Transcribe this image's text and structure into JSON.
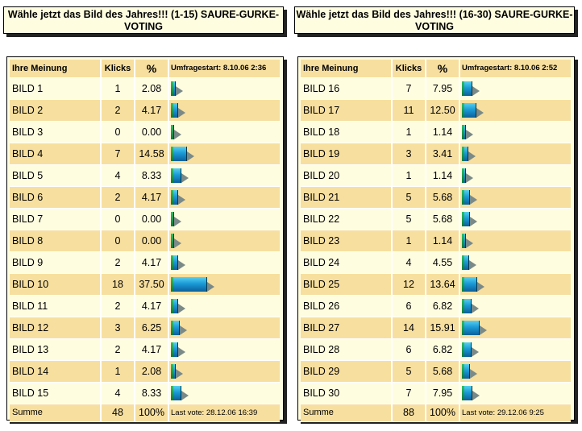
{
  "left": {
    "title": "Wähle jetzt das Bild des Jahres!!! (1-15) SAURE-GURKE-VOTING",
    "header": {
      "name": "Ihre Meinung",
      "count": "Klicks",
      "pct": "%",
      "start": "Umfragestart: 8.10.06 2:36"
    },
    "rows": [
      {
        "name": "BILD 1",
        "count": "1",
        "pct": "2.08"
      },
      {
        "name": "BILD 2",
        "count": "2",
        "pct": "4.17"
      },
      {
        "name": "BILD 3",
        "count": "0",
        "pct": "0.00"
      },
      {
        "name": "BILD 4",
        "count": "7",
        "pct": "14.58"
      },
      {
        "name": "BILD 5",
        "count": "4",
        "pct": "8.33"
      },
      {
        "name": "BILD 6",
        "count": "2",
        "pct": "4.17"
      },
      {
        "name": "BILD 7",
        "count": "0",
        "pct": "0.00"
      },
      {
        "name": "BILD 8",
        "count": "0",
        "pct": "0.00"
      },
      {
        "name": "BILD 9",
        "count": "2",
        "pct": "4.17"
      },
      {
        "name": "BILD 10",
        "count": "18",
        "pct": "37.50"
      },
      {
        "name": "BILD 11",
        "count": "2",
        "pct": "4.17"
      },
      {
        "name": "BILD 12",
        "count": "3",
        "pct": "6.25"
      },
      {
        "name": "BILD 13",
        "count": "2",
        "pct": "4.17"
      },
      {
        "name": "BILD 14",
        "count": "1",
        "pct": "2.08"
      },
      {
        "name": "BILD 15",
        "count": "4",
        "pct": "8.33"
      }
    ],
    "summary": {
      "label": "Summe",
      "count": "48",
      "pct": "100%",
      "last": "Last vote: 28.12.06 16:39"
    }
  },
  "right": {
    "title": "Wähle jetzt das Bild des Jahres!!! (16-30) SAURE-GURKE-VOTING",
    "header": {
      "name": "Ihre Meinung",
      "count": "Klicks",
      "pct": "%",
      "start": "Umfragestart: 8.10.06 2:52"
    },
    "rows": [
      {
        "name": "BILD 16",
        "count": "7",
        "pct": "7.95"
      },
      {
        "name": "BILD 17",
        "count": "11",
        "pct": "12.50"
      },
      {
        "name": "BILD 18",
        "count": "1",
        "pct": "1.14"
      },
      {
        "name": "BILD 19",
        "count": "3",
        "pct": "3.41"
      },
      {
        "name": "BILD 20",
        "count": "1",
        "pct": "1.14"
      },
      {
        "name": "BILD 21",
        "count": "5",
        "pct": "5.68"
      },
      {
        "name": "BILD 22",
        "count": "5",
        "pct": "5.68"
      },
      {
        "name": "BILD 23",
        "count": "1",
        "pct": "1.14"
      },
      {
        "name": "BILD 24",
        "count": "4",
        "pct": "4.55"
      },
      {
        "name": "BILD 25",
        "count": "12",
        "pct": "13.64"
      },
      {
        "name": "BILD 26",
        "count": "6",
        "pct": "6.82"
      },
      {
        "name": "BILD 27",
        "count": "14",
        "pct": "15.91"
      },
      {
        "name": "BILD 28",
        "count": "6",
        "pct": "6.82"
      },
      {
        "name": "BILD 29",
        "count": "5",
        "pct": "5.68"
      },
      {
        "name": "BILD 30",
        "count": "7",
        "pct": "7.95"
      }
    ],
    "summary": {
      "label": "Summe",
      "count": "88",
      "pct": "100%",
      "last": "Last vote: 29.12.06 9:25"
    }
  },
  "colors": {
    "box_bg": "#fffde0",
    "row_alt": "#f7df9f",
    "bar_blue": "#1a9ad6",
    "bar_green": "#0a7a3c"
  }
}
